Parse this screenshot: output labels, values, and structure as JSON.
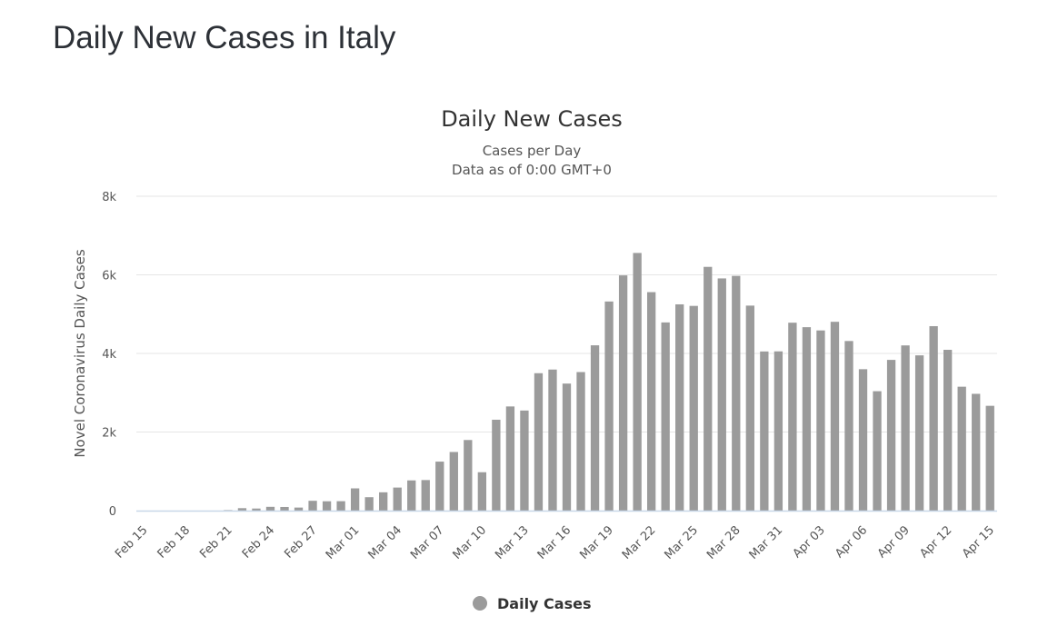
{
  "page": {
    "title": "Daily New Cases in Italy"
  },
  "chart_data": {
    "type": "bar",
    "title": "Daily New Cases",
    "subtitle_lines": [
      "Cases per Day",
      "Data as of 0:00 GMT+0"
    ],
    "xlabel": "",
    "ylabel": "Novel Coronavirus Daily Cases",
    "ylim": [
      0,
      8000
    ],
    "y_ticks": [
      0,
      2000,
      4000,
      6000,
      8000
    ],
    "y_tick_labels": [
      "0",
      "2k",
      "4k",
      "6k",
      "8k"
    ],
    "grid": true,
    "legend_position": "bottom-center",
    "bar_color": "#9b9b9b",
    "grid_color": "#e6e6e6",
    "baseline_color": "#c8d7e8",
    "categories": [
      "Feb 15",
      "Feb 16",
      "Feb 17",
      "Feb 18",
      "Feb 19",
      "Feb 20",
      "Feb 21",
      "Feb 22",
      "Feb 23",
      "Feb 24",
      "Feb 25",
      "Feb 26",
      "Feb 27",
      "Feb 28",
      "Feb 29",
      "Mar 01",
      "Mar 02",
      "Mar 03",
      "Mar 04",
      "Mar 05",
      "Mar 06",
      "Mar 07",
      "Mar 08",
      "Mar 09",
      "Mar 10",
      "Mar 11",
      "Mar 12",
      "Mar 13",
      "Mar 14",
      "Mar 15",
      "Mar 16",
      "Mar 17",
      "Mar 18",
      "Mar 19",
      "Mar 20",
      "Mar 21",
      "Mar 22",
      "Mar 23",
      "Mar 24",
      "Mar 25",
      "Mar 26",
      "Mar 27",
      "Mar 28",
      "Mar 29",
      "Mar 30",
      "Mar 31",
      "Apr 01",
      "Apr 02",
      "Apr 03",
      "Apr 04",
      "Apr 05",
      "Apr 06",
      "Apr 07",
      "Apr 08",
      "Apr 09",
      "Apr 10",
      "Apr 11",
      "Apr 12",
      "Apr 13",
      "Apr 14",
      "Apr 15"
    ],
    "x_tick_labels": [
      "Feb 15",
      "Feb 18",
      "Feb 21",
      "Feb 24",
      "Feb 27",
      "Mar 01",
      "Mar 04",
      "Mar 07",
      "Mar 10",
      "Mar 13",
      "Mar 16",
      "Mar 19",
      "Mar 22",
      "Mar 25",
      "Mar 28",
      "Mar 31",
      "Apr 03",
      "Apr 06",
      "Apr 09",
      "Apr 12",
      "Apr 15"
    ],
    "series": [
      {
        "name": "Daily Cases",
        "values": [
          0,
          0,
          0,
          0,
          0,
          0,
          14,
          62,
          53,
          97,
          93,
          78,
          250,
          238,
          240,
          566,
          342,
          466,
          587,
          769,
          778,
          1247,
          1492,
          1797,
          977,
          2313,
          2651,
          2547,
          3497,
          3590,
          3233,
          3526,
          4207,
          5322,
          5986,
          6557,
          5560,
          4789,
          5249,
          5210,
          6203,
          5909,
          5974,
          5217,
          4050,
          4053,
          4782,
          4668,
          4585,
          4805,
          4316,
          3599,
          3039,
          3836,
          4204,
          3951,
          4694,
          4092,
          3153,
          2972,
          2667
        ]
      }
    ]
  }
}
